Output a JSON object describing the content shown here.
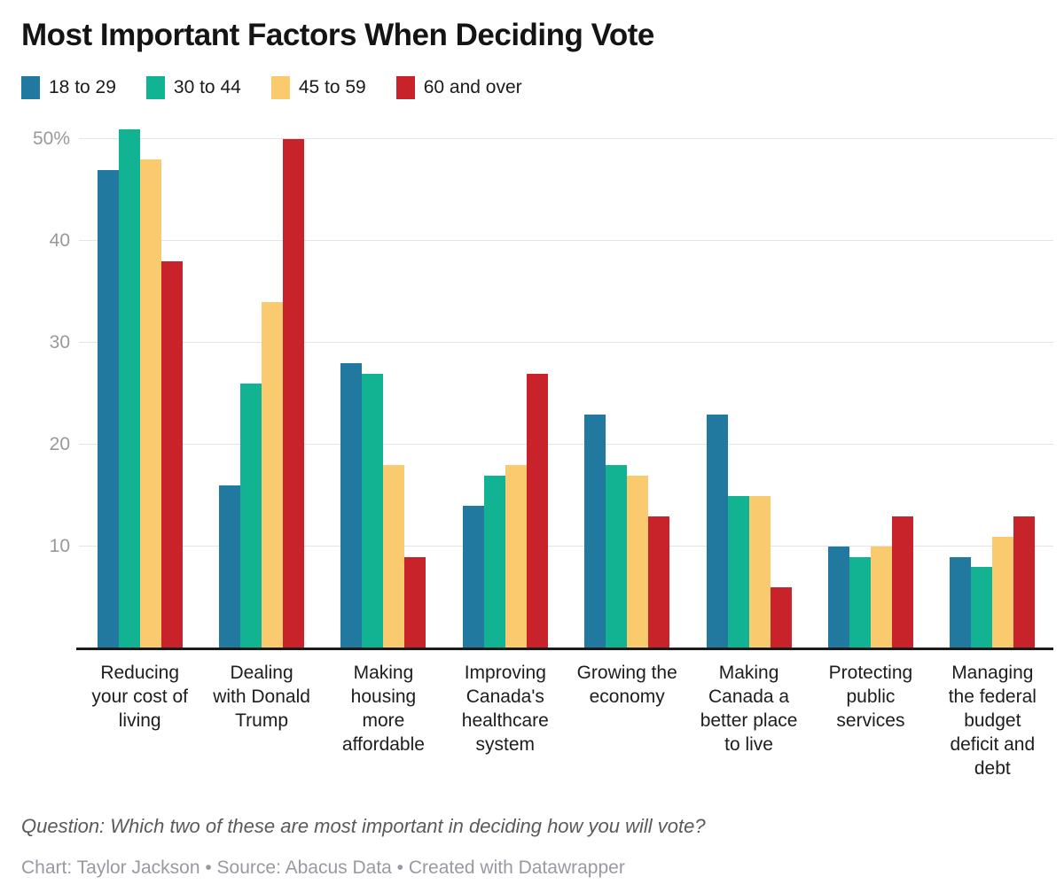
{
  "title": "Most Important Factors When Deciding Vote",
  "legend": [
    {
      "label": "18 to 29",
      "color": "#2279A0"
    },
    {
      "label": "30 to 44",
      "color": "#12B392"
    },
    {
      "label": "45 to 59",
      "color": "#FACA6E"
    },
    {
      "label": "60 and over",
      "color": "#C8232B"
    }
  ],
  "footer": {
    "question": "Question: Which two of these are most important in deciding how you will vote?",
    "credit": "Chart: Taylor Jackson • Source: Abacus Data • Created with Datawrapper"
  },
  "chart_data": {
    "type": "bar",
    "title": "Most Important Factors When Deciding Vote",
    "categories": [
      "Reducing your cost of living",
      "Dealing with Donald Trump",
      "Making housing more affordable",
      "Improving Canada's healthcare system",
      "Growing the economy",
      "Making Canada a better place to live",
      "Protecting public services",
      "Managing the federal budget deficit and debt"
    ],
    "category_label_lines": [
      "Reducing\nyour cost of\nliving",
      "Dealing\nwith Donald\nTrump",
      "Making\nhousing\nmore\naffordable",
      "Improving\nCanada's\nhealthcare\nsystem",
      "Growing the\neconomy",
      "Making\nCanada a\nbetter place\nto live",
      "Protecting\npublic\nservices",
      "Managing\nthe federal\nbudget\ndeficit and\ndebt"
    ],
    "series": [
      {
        "name": "18 to 29",
        "color": "#2279A0",
        "values": [
          47,
          16,
          28,
          14,
          23,
          23,
          10,
          9
        ]
      },
      {
        "name": "30 to 44",
        "color": "#12B392",
        "values": [
          51,
          26,
          27,
          17,
          18,
          15,
          9,
          8
        ]
      },
      {
        "name": "45 to 59",
        "color": "#FACA6E",
        "values": [
          48,
          34,
          18,
          18,
          17,
          15,
          10,
          11
        ]
      },
      {
        "name": "60 and over",
        "color": "#C8232B",
        "values": [
          38,
          50,
          9,
          27,
          13,
          6,
          13,
          13
        ]
      }
    ],
    "ylabel": "",
    "xlabel": "",
    "ylim": [
      0,
      52
    ],
    "yticks": [
      {
        "value": 10,
        "label": "10"
      },
      {
        "value": 20,
        "label": "20"
      },
      {
        "value": 30,
        "label": "30"
      },
      {
        "value": 40,
        "label": "40"
      },
      {
        "value": 50,
        "label": "50%"
      }
    ],
    "grid": "horizontal",
    "legend_position": "top"
  }
}
